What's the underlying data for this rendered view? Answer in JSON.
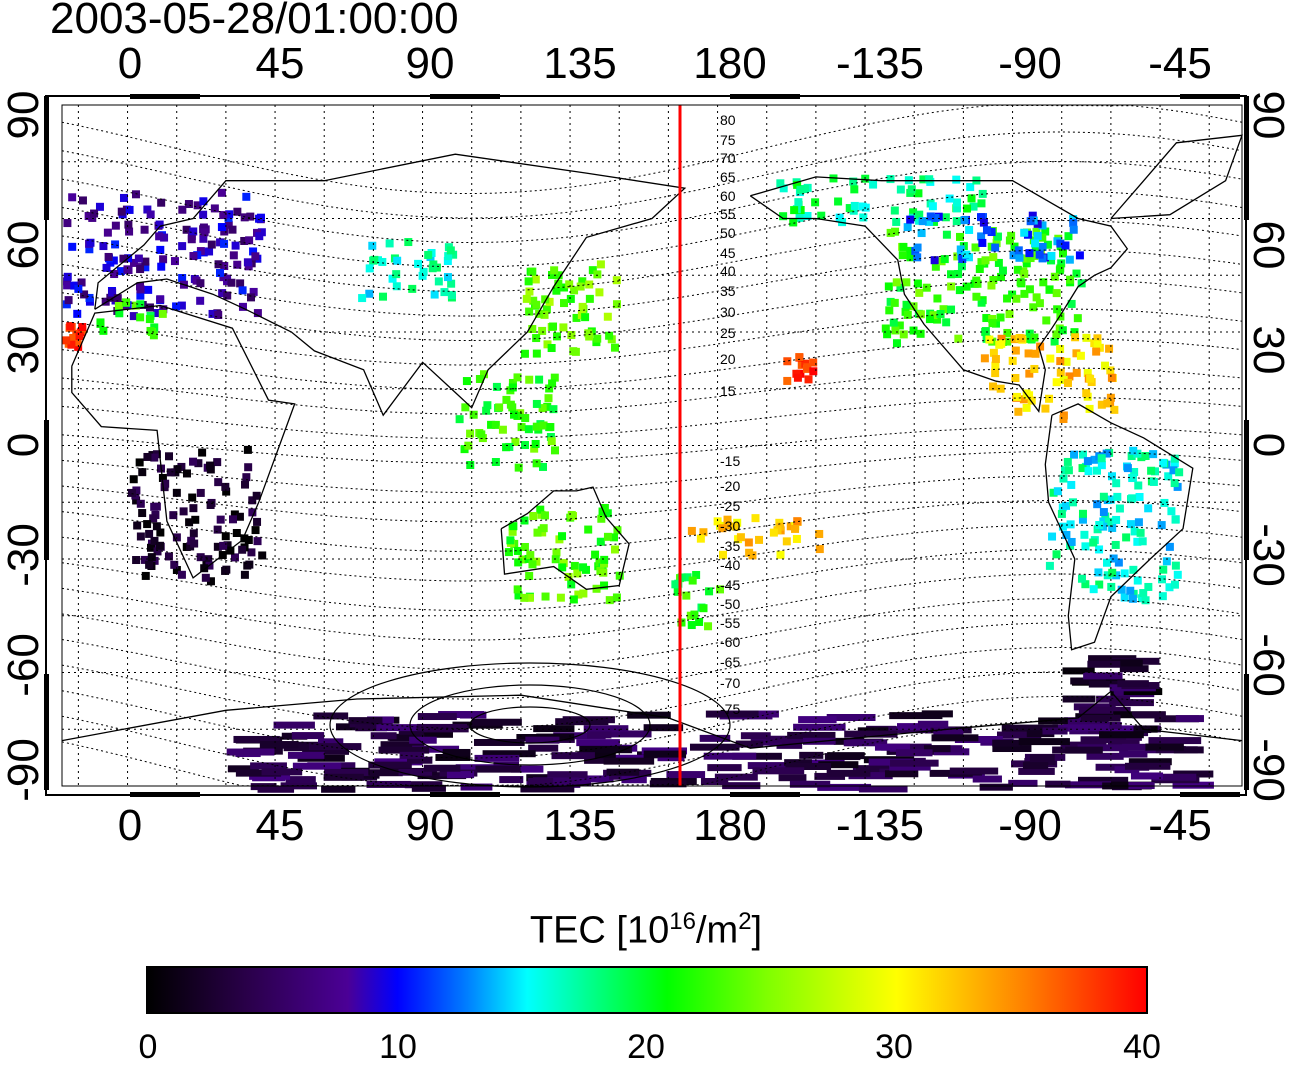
{
  "title": "2003-05-28/01:00:00",
  "lon_ticks_top": [
    "0",
    "45",
    "90",
    "135",
    "180",
    "-135",
    "-90",
    "-45"
  ],
  "lon_ticks_bottom": [
    "0",
    "45",
    "90",
    "135",
    "180",
    "-135",
    "-90",
    "-45"
  ],
  "lat_ticks_left": [
    "90",
    "60",
    "30",
    "0",
    "-30",
    "-60",
    "-90"
  ],
  "lat_ticks_right": [
    "90",
    "60",
    "30",
    "0",
    "-30",
    "-60",
    "-90"
  ],
  "contour_labels_north": [
    "80",
    "75",
    "70",
    "65",
    "60",
    "55",
    "50",
    "45",
    "40",
    "35",
    "30",
    "25",
    "20",
    "15"
  ],
  "contour_labels_south": [
    "-15",
    "-20",
    "-25",
    "-30",
    "-35",
    "-40",
    "-45",
    "-50",
    "-55",
    "-60",
    "-65",
    "-70",
    "-75"
  ],
  "colorbar": {
    "label_main": "TEC  [10",
    "label_exp": "16",
    "label_mid": "/m",
    "label_exp2": "2",
    "label_end": "]",
    "ticks": [
      "0",
      "10",
      "20",
      "30",
      "40"
    ]
  },
  "colors": {
    "meridian_line": "#ff0000",
    "land": "#000000"
  },
  "chart_data": {
    "type": "heatmap",
    "title": "2003-05-28/01:00:00",
    "x_range_lon": [
      -20,
      340
    ],
    "y_range_lat": [
      -90,
      90
    ],
    "color_range": [
      0,
      40
    ],
    "colorbar_label": "TEC [10^16/m^2]",
    "marker_meridian_lon": 165,
    "regions": [
      {
        "lon": [
          -20,
          40
        ],
        "lat": [
          35,
          68
        ],
        "tec": 8
      },
      {
        "lon": [
          -10,
          10
        ],
        "lat": [
          30,
          40
        ],
        "tec": 22
      },
      {
        "lon": [
          -20,
          -15
        ],
        "lat": [
          27,
          33
        ],
        "tec": 38
      },
      {
        "lon": [
          70,
          100
        ],
        "lat": [
          40,
          55
        ],
        "tec": 16
      },
      {
        "lon": [
          120,
          150
        ],
        "lat": [
          25,
          50
        ],
        "tec": 24
      },
      {
        "lon": [
          100,
          130
        ],
        "lat": [
          -5,
          20
        ],
        "tec": 22
      },
      {
        "lon": [
          115,
          150
        ],
        "lat": [
          -40,
          -15
        ],
        "tec": 23
      },
      {
        "lon": [
          165,
          180
        ],
        "lat": [
          -48,
          -33
        ],
        "tec": 21
      },
      {
        "lon": [
          170,
          210
        ],
        "lat": [
          -28,
          -18
        ],
        "tec": 32
      },
      {
        "lon": [
          200,
          210
        ],
        "lat": [
          18,
          25
        ],
        "tec": 38
      },
      {
        "lon": [
          195,
          260
        ],
        "lat": [
          60,
          72
        ],
        "tec": 18
      },
      {
        "lon": [
          230,
          290
        ],
        "lat": [
          28,
          58
        ],
        "tec": 22
      },
      {
        "lon": [
          235,
          290
        ],
        "lat": [
          50,
          62
        ],
        "tec": 12
      },
      {
        "lon": [
          260,
          300
        ],
        "lat": [
          8,
          30
        ],
        "tec": 32
      },
      {
        "lon": [
          280,
          320
        ],
        "lat": [
          -40,
          0
        ],
        "tec": 16
      },
      {
        "lon": [
          285,
          305
        ],
        "lat": [
          -75,
          -55
        ],
        "tec": 3
      },
      {
        "lon": [
          0,
          40
        ],
        "lat": [
          -35,
          0
        ],
        "tec": 2
      },
      {
        "lon": [
          30,
          320
        ],
        "lat": [
          -90,
          -70
        ],
        "tec": 4
      }
    ]
  }
}
